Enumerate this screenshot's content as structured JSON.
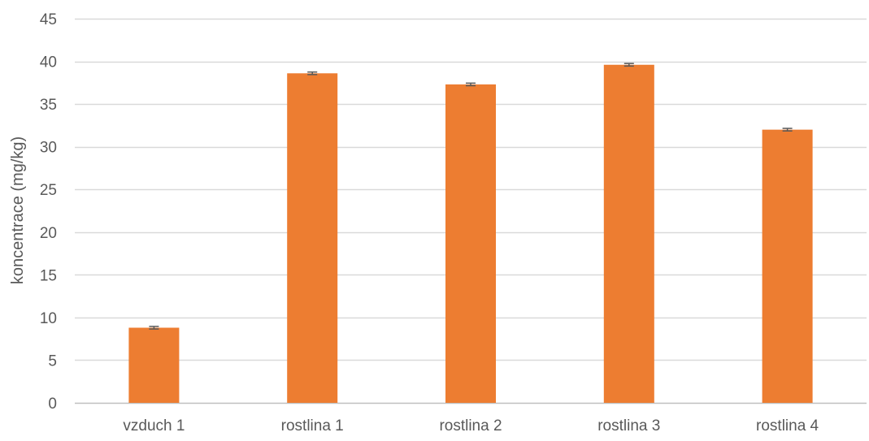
{
  "chart_data": {
    "type": "bar",
    "title": "",
    "xlabel": "",
    "ylabel": "koncentrace (mg/kg)",
    "categories": [
      "vzduch 1",
      "rostlina 1",
      "rostlina 2",
      "rostlina 3",
      "rostlina 4"
    ],
    "values": [
      8.8,
      38.6,
      37.3,
      39.6,
      32.0
    ],
    "error": [
      0.15,
      0.15,
      0.15,
      0.15,
      0.15
    ],
    "ylim": [
      0,
      45
    ],
    "yticks": [
      0,
      5,
      10,
      15,
      20,
      25,
      30,
      35,
      40,
      45
    ],
    "grid": true,
    "legend": "none",
    "colors": {
      "bar": "#ED7D31",
      "error_bar": "#595959",
      "grid": "#D9D9D9",
      "axis": "#BFBFBF",
      "text": "#595959"
    }
  }
}
